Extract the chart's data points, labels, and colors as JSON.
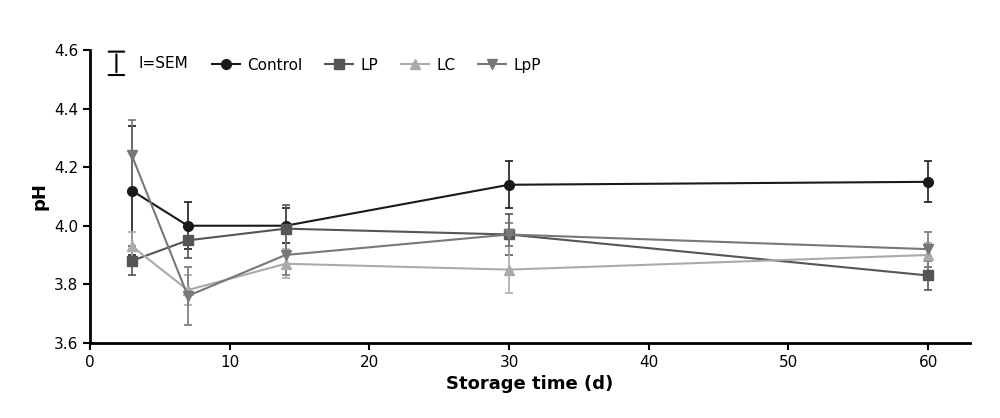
{
  "x": [
    3,
    7,
    14,
    30,
    60
  ],
  "series": {
    "Control": {
      "y": [
        4.12,
        4.0,
        4.0,
        4.14,
        4.15
      ],
      "yerr": [
        0.22,
        0.08,
        0.06,
        0.08,
        0.07
      ],
      "color": "#1a1a1a",
      "marker": "o",
      "linestyle": "-",
      "linewidth": 1.5,
      "markersize": 7
    },
    "LP": {
      "y": [
        3.88,
        3.95,
        3.99,
        3.97,
        3.83
      ],
      "yerr": [
        0.05,
        0.06,
        0.08,
        0.07,
        0.05
      ],
      "color": "#555555",
      "marker": "s",
      "linestyle": "-",
      "linewidth": 1.5,
      "markersize": 7
    },
    "LC": {
      "y": [
        3.93,
        3.78,
        3.87,
        3.85,
        3.9
      ],
      "yerr": [
        0.05,
        0.05,
        0.05,
        0.08,
        0.04
      ],
      "color": "#aaaaaa",
      "marker": "^",
      "linestyle": "-",
      "linewidth": 1.5,
      "markersize": 7
    },
    "LpP": {
      "y": [
        4.24,
        3.76,
        3.9,
        3.97,
        3.92
      ],
      "yerr": [
        0.12,
        0.1,
        0.07,
        0.04,
        0.06
      ],
      "color": "#777777",
      "marker": "v",
      "linestyle": "-",
      "linewidth": 1.5,
      "markersize": 7
    }
  },
  "xlabel": "Storage time (d)",
  "ylabel": "pH",
  "ylim": [
    3.6,
    4.6
  ],
  "xlim": [
    0,
    63
  ],
  "yticks": [
    3.6,
    3.8,
    4.0,
    4.2,
    4.4,
    4.6
  ],
  "xticks": [
    0,
    10,
    20,
    30,
    40,
    50,
    60
  ],
  "legend_sem": "I=SEM",
  "series_order": [
    "Control",
    "LP",
    "LC",
    "LpP"
  ],
  "figure_bg": "#ffffff"
}
